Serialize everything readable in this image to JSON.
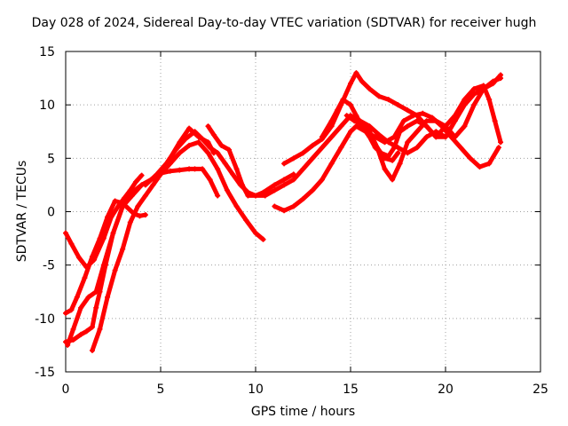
{
  "chart_data": {
    "type": "scatter",
    "title": "Day 028 of 2024, Sidereal Day-to-day VTEC variation (SDTVAR) for receiver hugh",
    "xlabel": "GPS time / hours",
    "ylabel": "SDTVAR / TECUs",
    "xlim": [
      0,
      25
    ],
    "ylim": [
      -15,
      15
    ],
    "xticks": [
      "0",
      "5",
      "10",
      "15",
      "20",
      "25"
    ],
    "yticks": [
      "-15",
      "-10",
      "-5",
      "0",
      "5",
      "10",
      "15"
    ],
    "grid": true,
    "legend": "none",
    "series_color": "#ff0000",
    "series": [
      {
        "x": [
          0.0,
          0.3,
          0.7,
          1.1,
          1.5,
          2.0,
          2.4,
          2.8,
          3.1,
          3.4,
          3.7,
          4.0
        ],
        "y": [
          -2.0,
          -3.0,
          -4.3,
          -5.2,
          -4.5,
          -2.5,
          -0.5,
          0.6,
          1.3,
          2.0,
          2.8,
          3.4
        ]
      },
      {
        "x": [
          0.0,
          0.3,
          0.6,
          1.0,
          1.4,
          1.8,
          2.2,
          2.6,
          3.0,
          3.3,
          3.6,
          3.9,
          4.2
        ],
        "y": [
          -9.5,
          -9.2,
          -8.0,
          -6.2,
          -4.2,
          -2.5,
          -0.5,
          1.0,
          0.8,
          0.3,
          -0.2,
          -0.4,
          -0.3
        ]
      },
      {
        "x": [
          0.0,
          0.4,
          0.8,
          1.1,
          1.4,
          1.6,
          1.8,
          2.1,
          2.5,
          3.0,
          3.5,
          4.0,
          4.5,
          5.0,
          5.5,
          6.0,
          6.5,
          6.8,
          7.2,
          7.6,
          8.0
        ],
        "y": [
          -12.2,
          -12.0,
          -11.5,
          -11.2,
          -10.8,
          -9.0,
          -7.5,
          -5.0,
          -2.0,
          0.5,
          1.8,
          2.5,
          3.0,
          3.6,
          3.8,
          3.9,
          4.0,
          4.0,
          4.0,
          3.0,
          1.5
        ]
      },
      {
        "x": [
          0.1,
          0.4,
          0.8,
          1.2,
          1.6,
          2.0,
          2.5,
          3.0,
          3.5,
          4.0,
          4.5,
          5.0,
          5.5,
          6.0,
          6.5,
          7.0,
          7.5,
          7.8
        ],
        "y": [
          -12.5,
          -11.0,
          -9.0,
          -8.0,
          -7.5,
          -5.0,
          -2.0,
          0.5,
          1.5,
          2.5,
          3.0,
          3.5,
          5.0,
          6.5,
          7.8,
          7.0,
          6.5,
          5.5
        ]
      },
      {
        "x": [
          1.4,
          1.8,
          2.2,
          2.6,
          3.0,
          3.4,
          3.8,
          4.2,
          4.6,
          5.0,
          5.5,
          6.0,
          6.5,
          7.0,
          7.5,
          8.0,
          8.5,
          9.0,
          9.5,
          10.0,
          10.4
        ],
        "y": [
          -13.0,
          -11.0,
          -8.0,
          -5.5,
          -3.5,
          -1.0,
          0.5,
          1.5,
          2.5,
          3.5,
          4.5,
          5.5,
          6.2,
          6.5,
          5.5,
          4.0,
          2.0,
          0.5,
          -0.8,
          -2.0,
          -2.6
        ]
      },
      {
        "x": [
          4.2,
          4.8,
          5.3,
          5.8,
          6.3,
          6.8,
          7.2,
          7.6,
          8.0,
          8.4,
          8.8,
          9.2,
          9.6,
          10.0,
          10.4,
          11.0,
          11.5,
          12.0
        ],
        "y": [
          2.5,
          3.5,
          4.5,
          5.8,
          6.8,
          7.5,
          6.8,
          6.0,
          5.5,
          4.5,
          3.5,
          2.5,
          1.8,
          1.5,
          1.8,
          2.5,
          3.0,
          3.5
        ]
      },
      {
        "x": [
          7.5,
          7.8,
          8.2,
          8.6,
          9.0,
          9.3,
          9.6,
          10.0,
          10.5,
          11.0,
          11.5,
          12.0,
          12.5,
          13.0,
          13.5,
          14.0,
          14.5,
          15.0,
          15.5,
          16.0,
          16.5,
          17.0,
          17.5,
          18.0,
          18.5,
          19.0,
          19.5,
          20.0
        ],
        "y": [
          8.0,
          7.2,
          6.2,
          5.8,
          4.0,
          2.5,
          1.5,
          1.5,
          1.5,
          2.0,
          2.5,
          3.0,
          4.0,
          5.0,
          6.0,
          7.0,
          8.0,
          9.0,
          8.5,
          8.0,
          7.2,
          6.5,
          6.0,
          5.5,
          6.0,
          7.0,
          7.5,
          7.0
        ]
      },
      {
        "x": [
          11.0,
          11.5,
          12.0,
          12.5,
          13.0,
          13.5,
          14.0,
          14.5,
          15.0,
          15.3,
          15.8,
          16.3,
          16.8,
          17.3,
          17.8,
          18.3,
          18.8,
          19.3,
          19.8,
          20.3,
          20.8,
          21.3,
          21.8,
          22.3,
          22.8
        ],
        "y": [
          0.5,
          0.1,
          0.5,
          1.2,
          2.0,
          3.0,
          4.5,
          6.0,
          7.5,
          8.0,
          7.5,
          7.0,
          6.5,
          7.0,
          8.5,
          9.0,
          9.2,
          8.8,
          8.0,
          7.0,
          6.0,
          5.0,
          4.2,
          4.5,
          6.0
        ]
      },
      {
        "x": [
          11.5,
          12.0,
          12.5,
          13.0,
          13.5,
          14.0,
          14.5,
          15.0,
          15.3,
          15.6,
          16.0,
          16.5,
          17.0,
          17.5,
          18.0,
          18.5,
          19.0,
          19.5,
          20.0,
          20.5,
          21.0,
          21.5,
          22.0,
          22.3,
          22.6,
          22.9
        ],
        "y": [
          4.5,
          5.0,
          5.5,
          6.2,
          6.8,
          8.0,
          10.0,
          12.0,
          13.0,
          12.2,
          11.5,
          10.8,
          10.5,
          10.0,
          9.5,
          9.0,
          8.0,
          7.0,
          8.0,
          9.0,
          10.5,
          11.5,
          11.8,
          10.5,
          8.5,
          6.5
        ]
      },
      {
        "x": [
          13.5,
          14.0,
          14.3,
          14.6,
          15.0,
          15.3,
          15.6,
          16.0,
          16.3,
          16.6,
          17.0,
          17.3,
          17.6,
          18.0,
          18.5,
          19.0,
          19.5,
          20.0,
          20.5,
          21.0,
          21.5,
          22.0,
          22.5,
          22.9
        ],
        "y": [
          7.0,
          8.5,
          9.5,
          10.5,
          10.0,
          9.0,
          8.0,
          7.0,
          6.0,
          5.5,
          5.2,
          6.0,
          7.5,
          8.0,
          8.5,
          8.0,
          7.0,
          7.0,
          8.5,
          10.0,
          11.0,
          11.5,
          12.0,
          12.8
        ]
      },
      {
        "x": [
          16.0,
          16.4,
          16.8,
          17.2,
          17.6,
          18.0,
          18.5,
          19.0,
          19.5,
          20.0,
          20.5,
          21.0,
          21.5,
          22.0,
          22.5,
          22.9
        ],
        "y": [
          7.5,
          6.0,
          4.0,
          3.0,
          4.5,
          6.5,
          7.5,
          8.5,
          8.5,
          8.0,
          7.0,
          8.0,
          10.0,
          11.5,
          12.2,
          12.5
        ]
      },
      {
        "x": [
          14.8,
          15.2,
          15.6,
          16.0,
          16.4,
          16.8,
          17.2,
          17.5
        ],
        "y": [
          9.0,
          8.5,
          8.2,
          7.5,
          6.0,
          5.0,
          4.8,
          5.5
        ]
      }
    ]
  }
}
